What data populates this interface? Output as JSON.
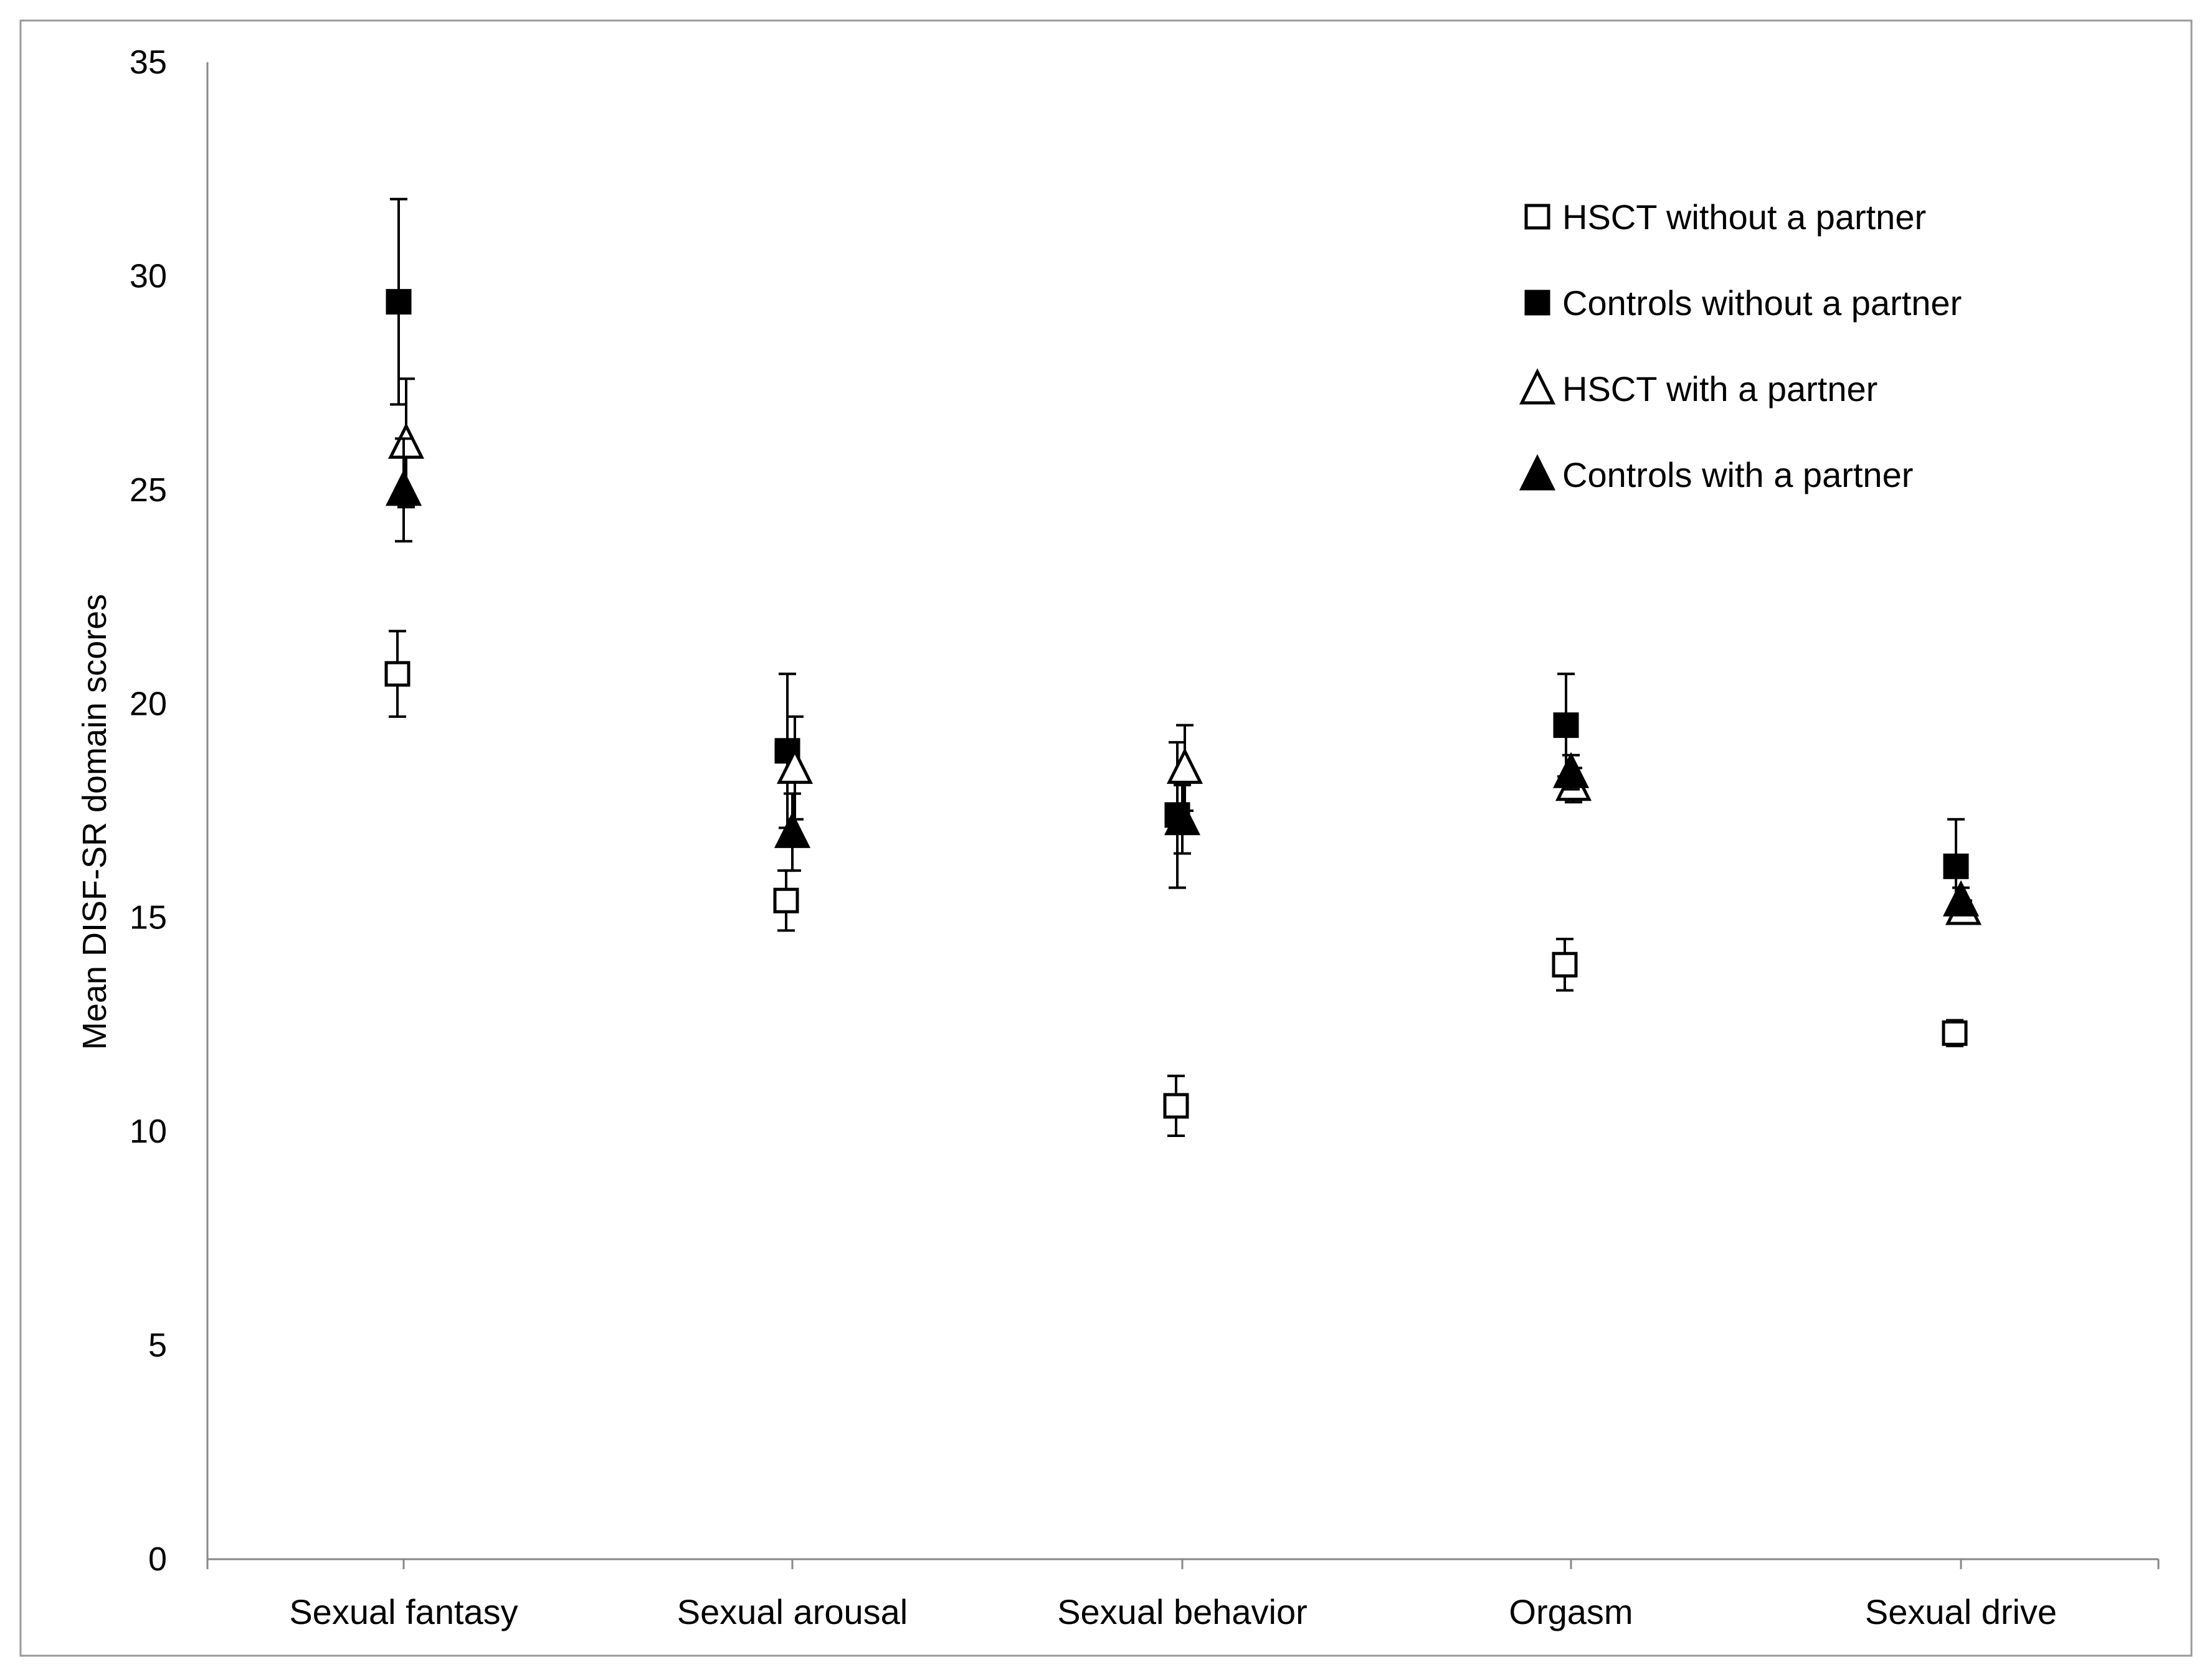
{
  "chart_data": {
    "type": "scatter",
    "title": "",
    "xlabel": "",
    "ylabel": "Mean DISF-SR domain scores",
    "ylim": [
      0,
      35
    ],
    "yticks": [
      0,
      5,
      10,
      15,
      20,
      25,
      30,
      35
    ],
    "categories": [
      "Sexual fantasy",
      "Sexual arousal",
      "Sexual behavior",
      "Orgasm",
      "Sexual drive"
    ],
    "legend_position": "top-right",
    "grid": false,
    "series": [
      {
        "name": "HSCT without a partner",
        "marker": "square-open",
        "values": [
          20.7,
          15.4,
          10.6,
          13.9,
          12.3
        ],
        "error": [
          1.0,
          0.7,
          0.7,
          0.6,
          0.3
        ]
      },
      {
        "name": "Controls without a partner",
        "marker": "square-filled",
        "values": [
          29.4,
          18.9,
          17.4,
          19.5,
          16.2
        ],
        "error": [
          2.4,
          1.8,
          1.7,
          1.2,
          1.1
        ]
      },
      {
        "name": "HSCT with a partner",
        "marker": "triangle-open",
        "values": [
          26.1,
          18.5,
          18.5,
          18.1,
          15.2
        ],
        "error": [
          1.5,
          1.2,
          1.0,
          0.4,
          0.2
        ]
      },
      {
        "name": "Controls with a partner",
        "marker": "triangle-filled",
        "values": [
          25.0,
          17.0,
          17.3,
          18.4,
          15.4
        ],
        "error": [
          1.2,
          0.9,
          0.8,
          0.4,
          0.3
        ]
      }
    ]
  },
  "colors": {
    "ink": "#000000",
    "axis": "#888888",
    "frame": "#9a9a9a",
    "background": "#ffffff"
  }
}
